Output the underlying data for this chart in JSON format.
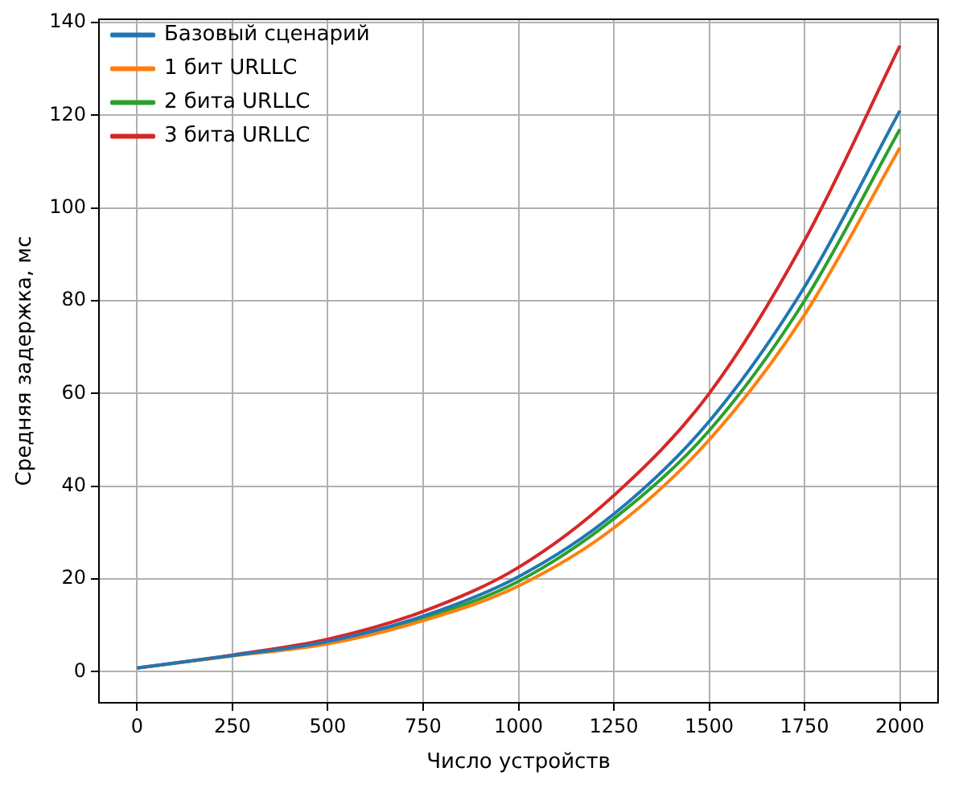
{
  "chart_data": {
    "type": "line",
    "xlabel": "Число устройств",
    "ylabel": "Средняя задержка, мс",
    "x": [
      0,
      250,
      500,
      750,
      1000,
      1250,
      1500,
      1750,
      2000
    ],
    "series": [
      {
        "name": "Базовый сценарий",
        "color": "#1f77b4",
        "values": [
          0.8,
          3.5,
          6.5,
          12,
          20.5,
          34,
          54,
          83,
          121
        ]
      },
      {
        "name": "1 бит URLLC",
        "color": "#ff7f0e",
        "values": [
          0.8,
          3.4,
          6,
          11,
          18.5,
          31,
          50,
          77,
          113
        ]
      },
      {
        "name": "2 бита URLLC",
        "color": "#2ca02c",
        "values": [
          null,
          null,
          6.3,
          11.5,
          19.5,
          33,
          52,
          80,
          117
        ]
      },
      {
        "name": "3 бита URLLC",
        "color": "#d62728",
        "values": [
          0.8,
          3.6,
          7,
          13,
          22.5,
          38,
          60,
          93,
          135
        ]
      }
    ],
    "xlim": [
      -100,
      2100
    ],
    "xticks": [
      0,
      250,
      500,
      750,
      1000,
      1250,
      1500,
      1750,
      2000
    ],
    "ylim": [
      -6.7,
      140.7
    ],
    "yticks": [
      0,
      20,
      40,
      60,
      80,
      100,
      120,
      140
    ],
    "grid": true,
    "legend": "top left",
    "marker": "none",
    "line_style": "solid"
  }
}
